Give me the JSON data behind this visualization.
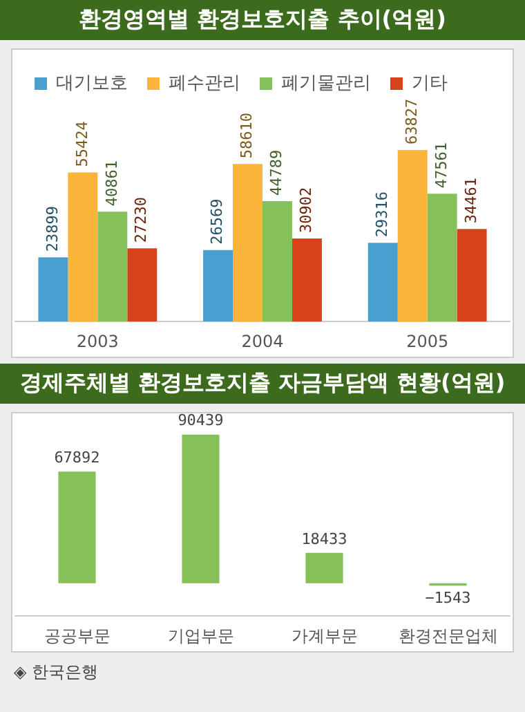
{
  "chart_data": [
    {
      "type": "bar",
      "title": "환경영역별 환경보호지출 추이(억원)",
      "categories": [
        "2003",
        "2004",
        "2005"
      ],
      "legend": "top left",
      "data_labels": true,
      "series": [
        {
          "name": "대기보호",
          "color": "#48a0d0",
          "values": [
            23899,
            26569,
            29316
          ]
        },
        {
          "name": "폐수관리",
          "color": "#fab43a",
          "values": [
            55424,
            58610,
            63827
          ]
        },
        {
          "name": "폐기물관리",
          "color": "#86c058",
          "values": [
            40861,
            44789,
            47561
          ]
        },
        {
          "name": "기타",
          "color": "#d8421a",
          "values": [
            27230,
            30902,
            34461
          ]
        }
      ]
    },
    {
      "type": "bar",
      "title": "경제주체별 환경보호지출 자금부담액 현황(억원)",
      "categories": [
        "공공부문",
        "기업부문",
        "가계부문",
        "환경전문업체"
      ],
      "values": [
        67892,
        90439,
        18433,
        -1543
      ],
      "color": "#86c058",
      "data_labels": true,
      "annotations": [
        "◈ 한국은행"
      ]
    }
  ]
}
